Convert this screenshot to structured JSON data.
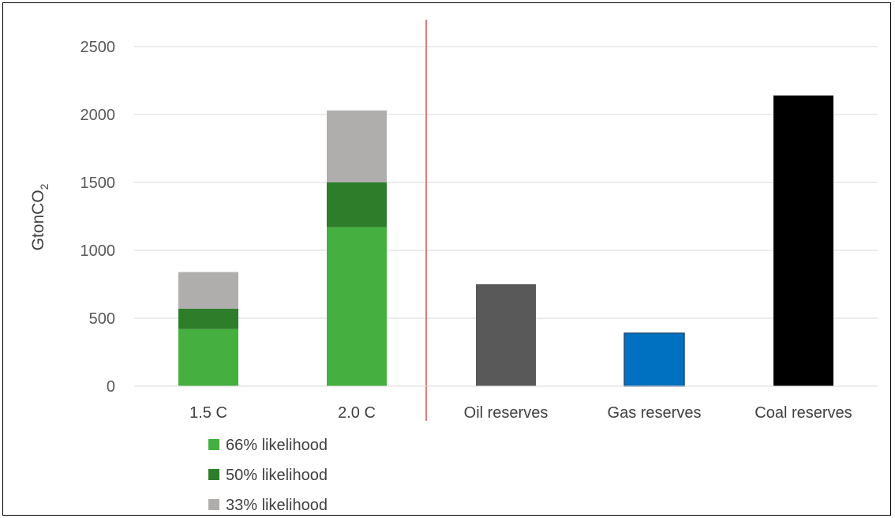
{
  "chart_data": {
    "type": "bar",
    "categories": [
      "1.5 C",
      "2.0 C",
      "Oil reserves",
      "Gas reserves",
      "Coal reserves"
    ],
    "ylabel": {
      "main": "GtonCO",
      "sub": "2"
    },
    "ylim": [
      0,
      2500
    ],
    "yticks": [
      0,
      500,
      1000,
      1500,
      2000,
      2500
    ],
    "grid": true,
    "legend_position": "bottom-left",
    "stacked_series": [
      {
        "name": "66% likelihood",
        "color": "#45b03f",
        "values": [
          420,
          1170
        ]
      },
      {
        "name": "50% likelihood",
        "color": "#2e7d2b",
        "values": [
          150,
          330
        ]
      },
      {
        "name": "33% likelihood",
        "color": "#b0aeac",
        "values": [
          270,
          530
        ]
      }
    ],
    "reserves": [
      {
        "category": "Oil reserves",
        "value": 750,
        "color": "#595959"
      },
      {
        "category": "Gas reserves",
        "value": 390,
        "color": "#0070c0",
        "border": "#1f4e79"
      },
      {
        "category": "Coal reserves",
        "value": 2140,
        "color": "#000000"
      }
    ],
    "divider_color": "#d9534f"
  }
}
